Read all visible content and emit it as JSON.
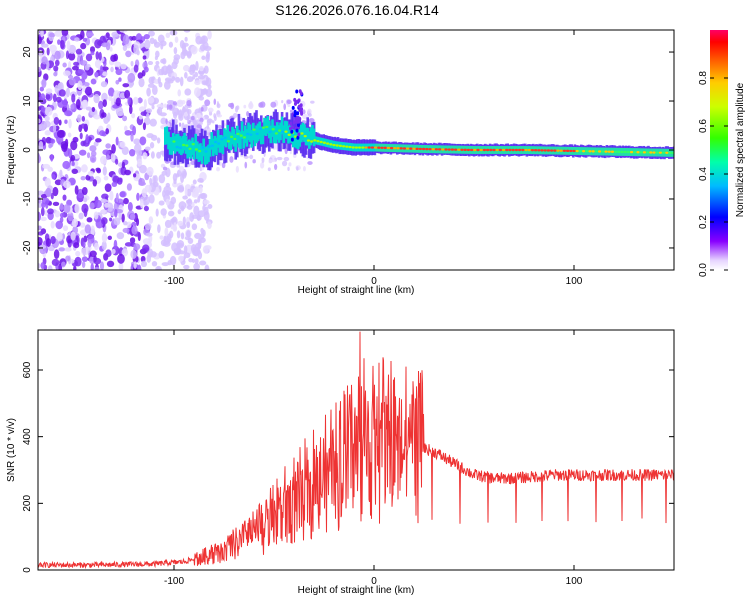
{
  "title": "S126.2026.076.16.04.R14",
  "chart_data": [
    {
      "type": "heatmap",
      "xlabel": "Height of straight line (km)",
      "ylabel": "Frequency (Hz)",
      "xlim": [
        -168,
        150
      ],
      "ylim": [
        -24.5,
        24.5
      ],
      "x_ticks": [
        -100,
        0,
        100
      ],
      "y_ticks": [
        -20,
        -10,
        0,
        10,
        20
      ],
      "x_tick_labels": [
        "-100",
        "0",
        "100"
      ],
      "y_tick_labels": [
        "-20",
        "-10",
        "0",
        "10",
        "20"
      ],
      "noise_region_x": [
        -168,
        -90
      ],
      "signal_track": {
        "x": [
          -105,
          -95,
          -85,
          -75,
          -65,
          -55,
          -45,
          -38,
          -30,
          -20,
          -10,
          0,
          25,
          50,
          75,
          100,
          125,
          150
        ],
        "freq_hz": [
          2.0,
          1.0,
          0.0,
          2.0,
          3.0,
          4.0,
          4.0,
          3.0,
          2.0,
          1.0,
          0.5,
          0.5,
          0.2,
          0.0,
          0.0,
          -0.2,
          -0.4,
          -0.6
        ]
      }
    },
    {
      "type": "colorbar",
      "label": "Normalized spectral amplitude",
      "range": [
        0,
        1
      ],
      "ticks": [
        0.0,
        0.2,
        0.4,
        0.6,
        0.8
      ],
      "tick_labels": [
        "0.0",
        "0.2",
        "0.4",
        "0.6",
        "0.8"
      ]
    },
    {
      "type": "line",
      "xlabel": "Height of straight line (km)",
      "ylabel": "SNR (10 * v/v)",
      "xlim": [
        -168,
        150
      ],
      "ylim": [
        0,
        720
      ],
      "x_ticks": [
        -100,
        0,
        100
      ],
      "y_ticks": [
        0,
        200,
        400,
        600
      ],
      "x_tick_labels": [
        "-100",
        "0",
        "100"
      ],
      "y_tick_labels": [
        "0",
        "200",
        "400",
        "600"
      ],
      "series": [
        {
          "name": "SNR",
          "color": "#ee3333",
          "x": [
            -168,
            -140,
            -110,
            -95,
            -85,
            -75,
            -65,
            -55,
            -45,
            -35,
            -25,
            -15,
            -8,
            0,
            10,
            20,
            30,
            40,
            50,
            60,
            70,
            80,
            90,
            100,
            110,
            120,
            130,
            140,
            150
          ],
          "y": [
            15,
            15,
            18,
            25,
            40,
            60,
            90,
            130,
            190,
            240,
            280,
            330,
            380,
            400,
            385,
            375,
            355,
            320,
            285,
            275,
            275,
            280,
            285,
            285,
            285,
            285,
            285,
            285,
            285
          ],
          "peak": {
            "x": -7,
            "y": 715
          },
          "dropouts_x": [
            29,
            43,
            57,
            71,
            84,
            97,
            111,
            124,
            134,
            146
          ]
        }
      ]
    }
  ],
  "colors": {
    "series_line": "#ee3333",
    "axis": "#000000"
  }
}
